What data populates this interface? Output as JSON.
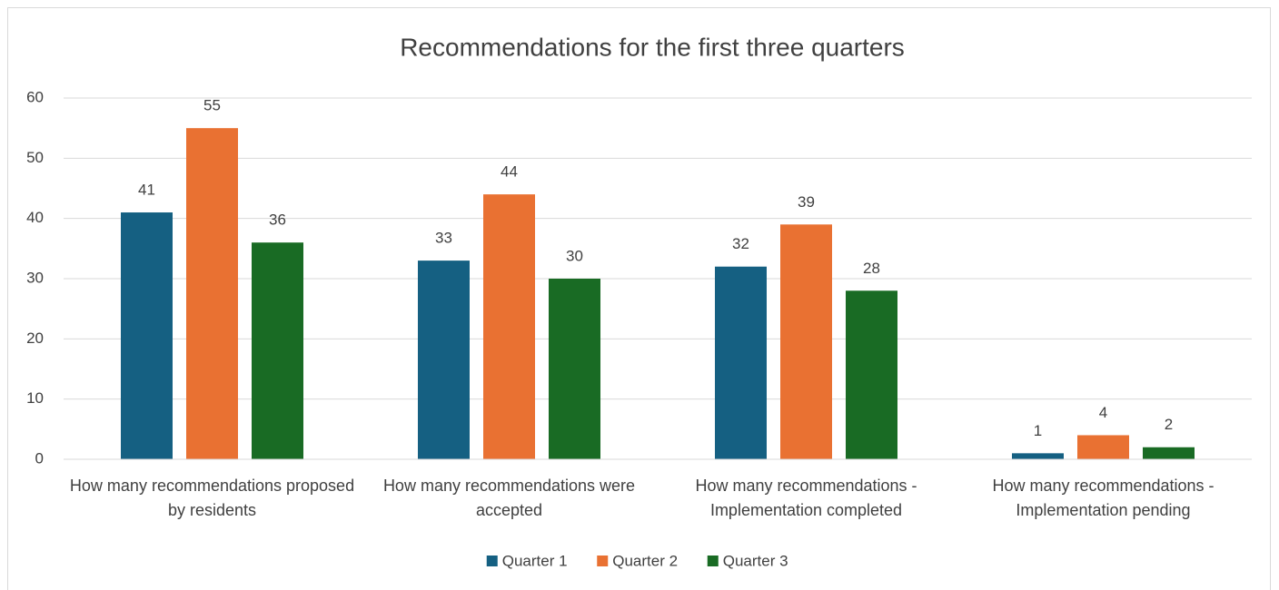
{
  "chart_data": {
    "type": "bar",
    "title": "Recommendations for the first three quarters",
    "categories": [
      "How many recommendations proposed by residents",
      "How many recommendations were accepted",
      "How many recommendations - Implementation completed",
      "How many recommendations - Implementation pending"
    ],
    "series": [
      {
        "name": "Quarter 1",
        "color": "#156082",
        "values": [
          41,
          33,
          32,
          1
        ]
      },
      {
        "name": "Quarter 2",
        "color": "#e97132",
        "values": [
          55,
          44,
          39,
          4
        ]
      },
      {
        "name": "Quarter 3",
        "color": "#196b24",
        "values": [
          36,
          30,
          28,
          2
        ]
      }
    ],
    "ylim": [
      0,
      60
    ],
    "yticks": [
      0,
      10,
      20,
      30,
      40,
      50,
      60
    ],
    "grid": true,
    "legend": "bottom"
  }
}
